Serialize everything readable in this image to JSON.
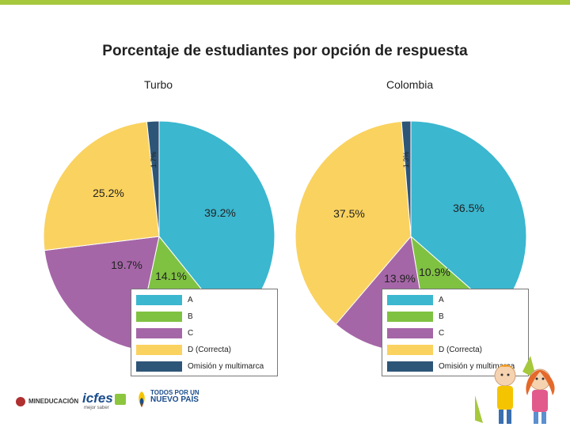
{
  "title": "Porcentaje de estudiantes por opción de respuesta",
  "chart_data": [
    {
      "type": "pie",
      "title": "Turbo",
      "labels": [
        "A",
        "B",
        "C",
        "D (Correcta)",
        "Omisión y multimarca"
      ],
      "values": [
        39.2,
        14.1,
        19.7,
        25.2,
        1.7
      ],
      "value_labels": [
        "39.2%",
        "14.1%",
        "19.7%",
        "25.2%",
        "1.7%"
      ]
    },
    {
      "type": "pie",
      "title": "Colombia",
      "labels": [
        "A",
        "B",
        "C",
        "D (Correcta)",
        "Omisión y multimarca"
      ],
      "values": [
        36.5,
        10.9,
        13.9,
        37.5,
        1.3
      ],
      "value_labels": [
        "36.5%",
        "10.9%",
        "13.9%",
        "37.5%",
        "1.3%"
      ]
    }
  ],
  "colors": [
    "#3bb7cf",
    "#7fc242",
    "#a566a7",
    "#fad25f",
    "#2d5577"
  ],
  "footer": {
    "mineducacion": "MINEDUCACIÓN",
    "icfes": "icfes",
    "icfes_tagline": "mejor saber",
    "pais_line1": "TODOS POR UN",
    "pais_line2": "NUEVO PAÍS"
  }
}
